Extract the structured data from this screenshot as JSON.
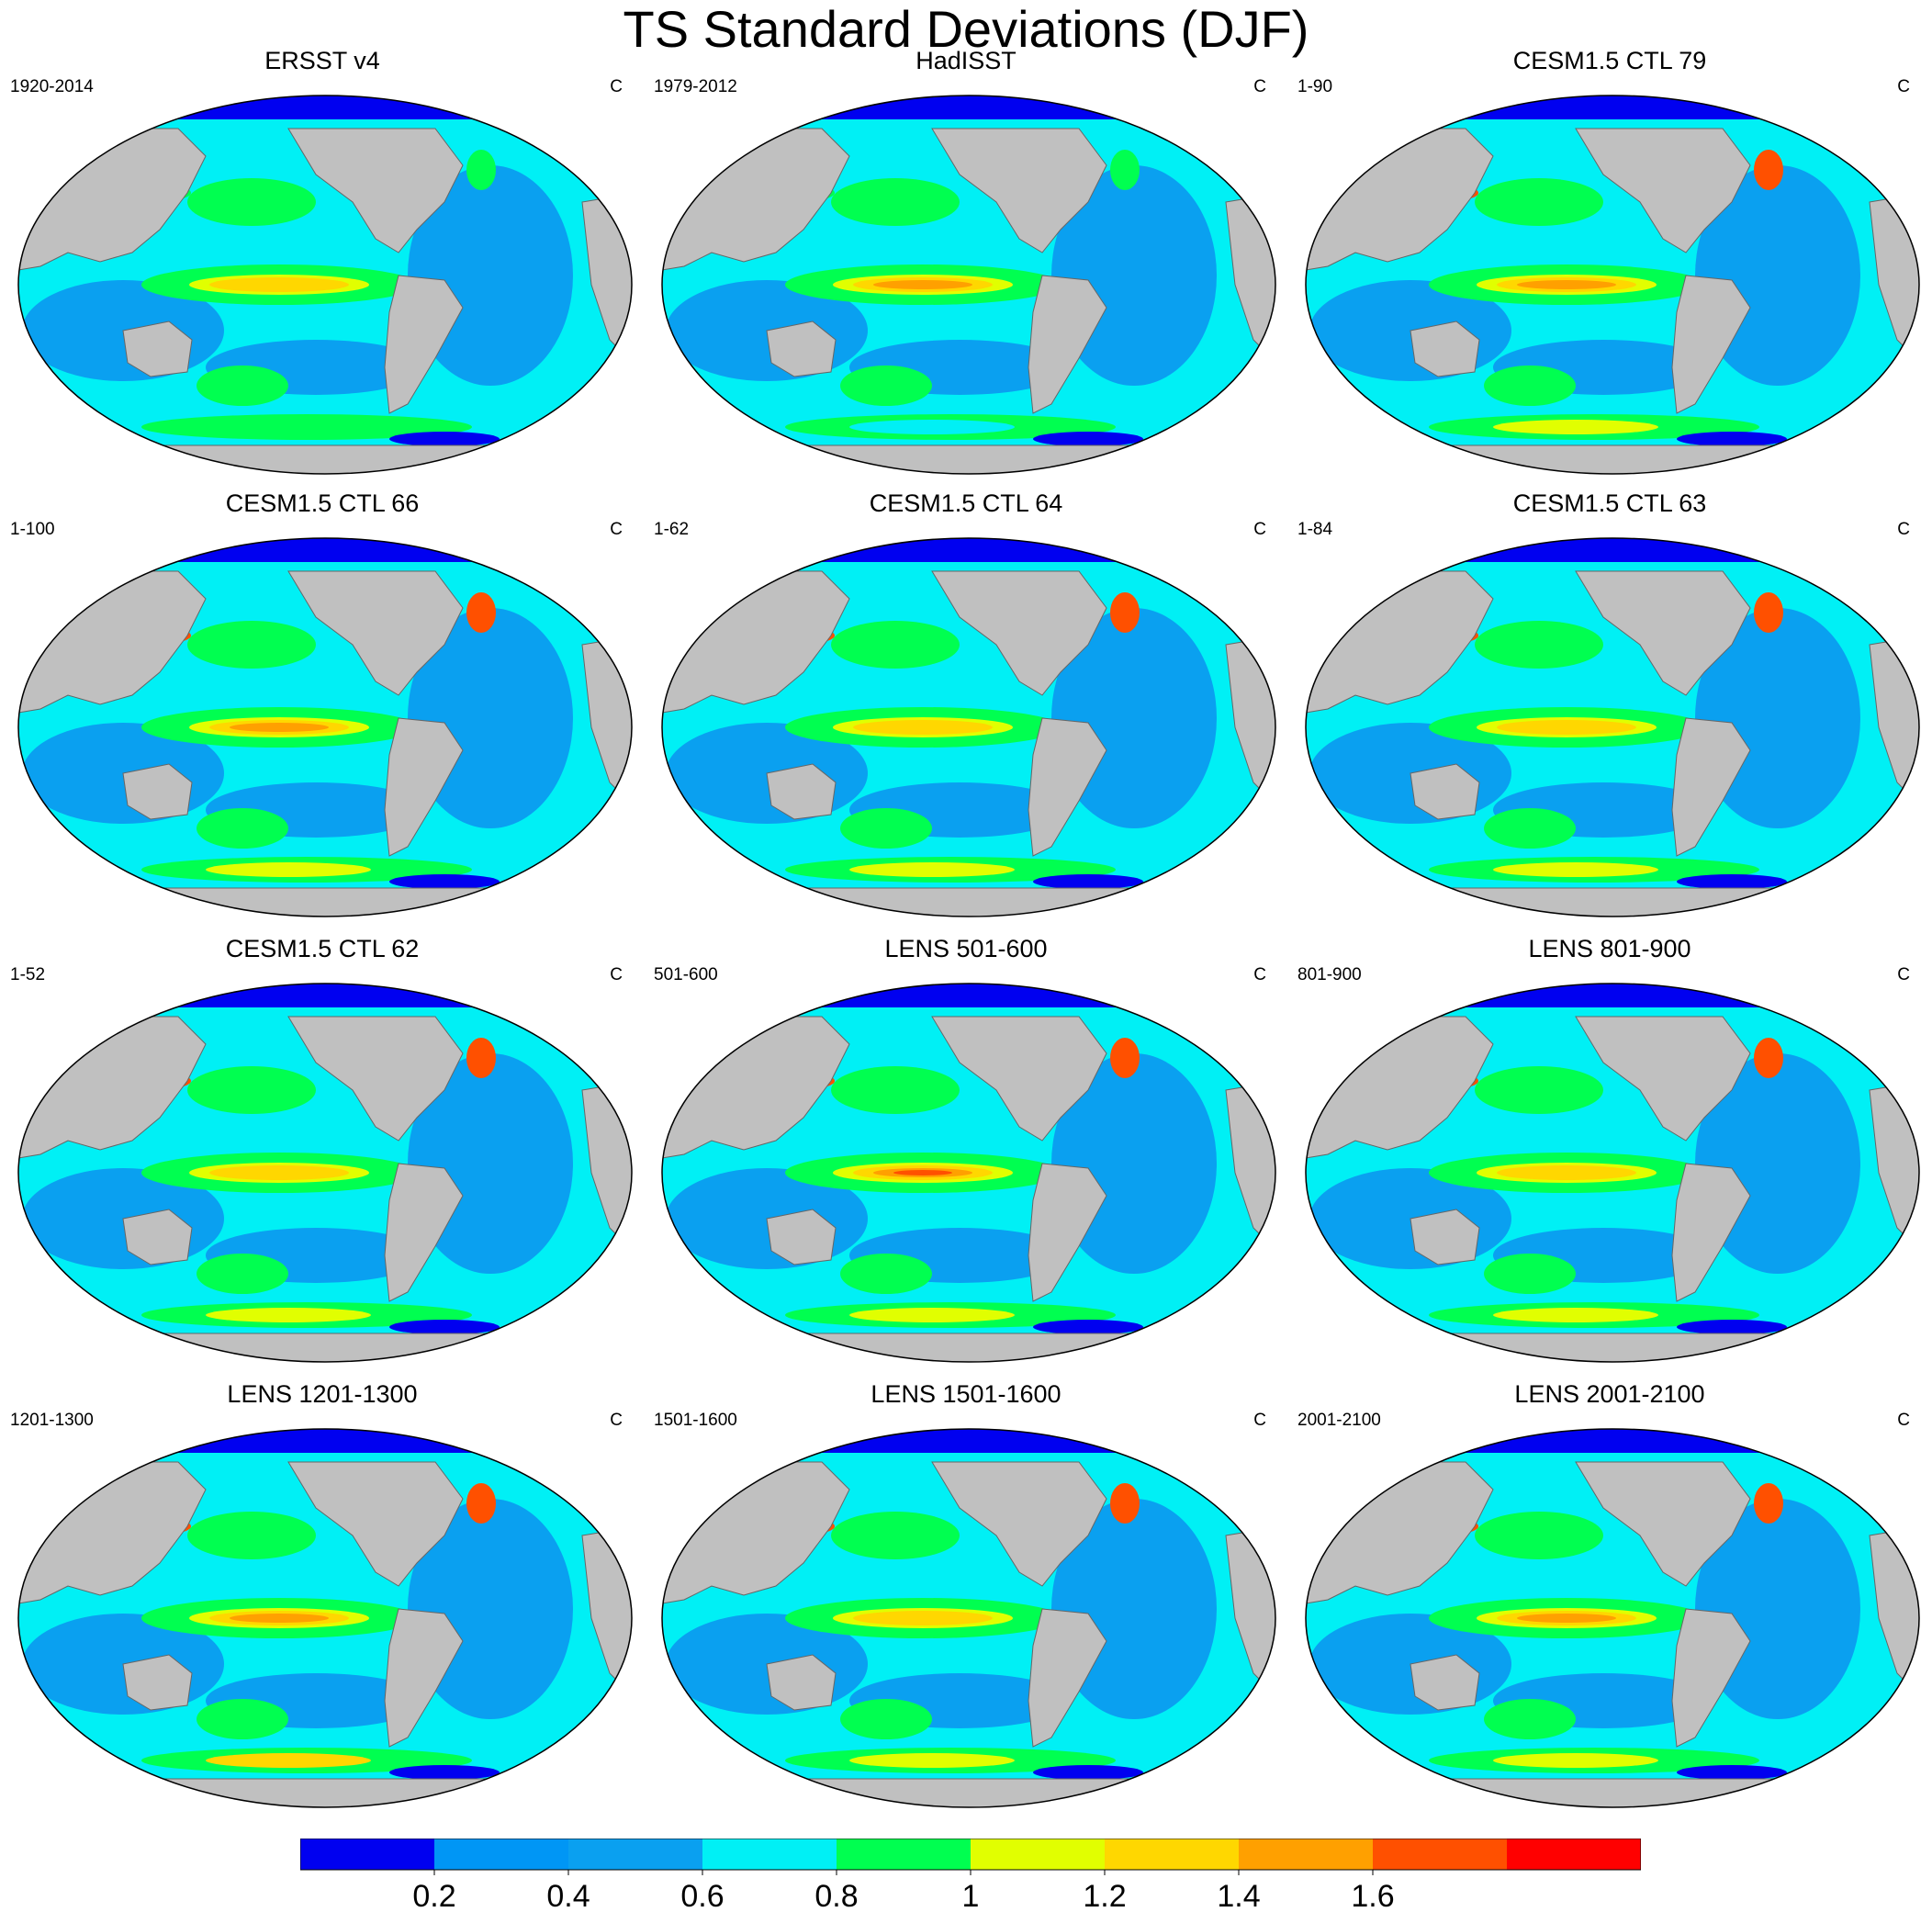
{
  "title": "TS Standard Deviations (DJF)",
  "units": "C",
  "colors": {
    "land": "#c0c0c0",
    "levels": [
      "#0000f0",
      "#0096f5",
      "#0aa0f0",
      "#00f0f5",
      "#00ff50",
      "#e1ff00",
      "#ffd700",
      "#ffa000",
      "#ff5000",
      "#ff0000"
    ]
  },
  "chart_data": {
    "type": "heatmap",
    "title": "TS Standard Deviations (DJF)",
    "units": "C",
    "projection": "Robinson (Pacific-centered)",
    "panels": [
      {
        "name": "ERSST v4",
        "period": "1920-2014",
        "nino_max": 1.3,
        "north_pacific_max": 0.8,
        "southern_ocean_max": 0.8
      },
      {
        "name": "HadISST",
        "period": "1979-2012",
        "nino_max": 1.4,
        "north_pacific_max": 0.8,
        "southern_ocean_max": 0.6
      },
      {
        "name": "CESM1.5 CTL 79",
        "period": "1-90",
        "nino_max": 1.5,
        "north_pacific_max": 1.8,
        "southern_ocean_max": 1.0
      },
      {
        "name": "CESM1.5 CTL 66",
        "period": "1-100",
        "nino_max": 1.4,
        "north_pacific_max": 1.8,
        "southern_ocean_max": 1.0
      },
      {
        "name": "CESM1.5 CTL 64",
        "period": "1-62",
        "nino_max": 1.3,
        "north_pacific_max": 1.8,
        "southern_ocean_max": 1.0
      },
      {
        "name": "CESM1.5 CTL 63",
        "period": "1-84",
        "nino_max": 1.3,
        "north_pacific_max": 1.8,
        "southern_ocean_max": 1.0
      },
      {
        "name": "CESM1.5 CTL 62",
        "period": "1-52",
        "nino_max": 1.3,
        "north_pacific_max": 1.8,
        "southern_ocean_max": 1.0
      },
      {
        "name": "LENS 501-600",
        "period": "501-600",
        "nino_max": 1.6,
        "north_pacific_max": 1.8,
        "southern_ocean_max": 1.0
      },
      {
        "name": "LENS 801-900",
        "period": "801-900",
        "nino_max": 1.3,
        "north_pacific_max": 1.8,
        "southern_ocean_max": 1.0
      },
      {
        "name": "LENS 1201-1300",
        "period": "1201-1300",
        "nino_max": 1.4,
        "north_pacific_max": 1.8,
        "southern_ocean_max": 1.2
      },
      {
        "name": "LENS 1501-1600",
        "period": "1501-1600",
        "nino_max": 1.3,
        "north_pacific_max": 1.8,
        "southern_ocean_max": 1.0
      },
      {
        "name": "LENS 2001-2100",
        "period": "2001-2100",
        "nino_max": 1.4,
        "north_pacific_max": 1.8,
        "southern_ocean_max": 1.0
      }
    ],
    "colorbar": {
      "levels": [
        0.2,
        0.4,
        0.6,
        0.8,
        1,
        1.2,
        1.4,
        1.6
      ],
      "labels": [
        "0.2",
        "0.4",
        "0.6",
        "0.8",
        "1",
        "1.2",
        "1.4",
        "1.6"
      ],
      "placement": "bottom"
    }
  }
}
